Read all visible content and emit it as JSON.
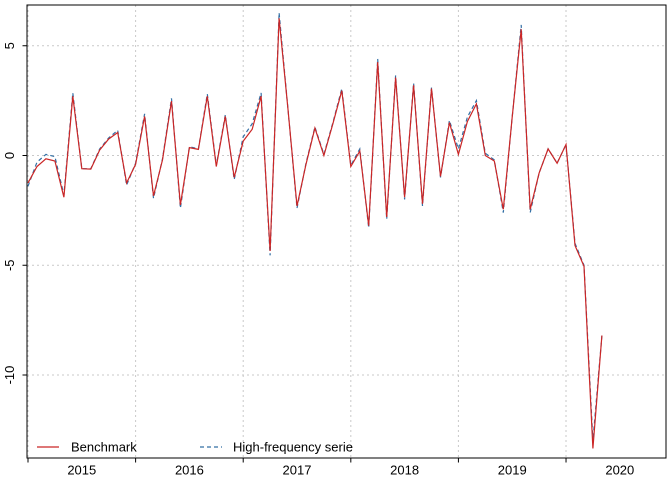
{
  "chart_data": {
    "type": "line",
    "title": "",
    "xlabel": "",
    "ylabel": "",
    "x_unit": "month",
    "x_start": "2015-01",
    "x_end": "2020-05",
    "x_tick_labels": [
      "2015",
      "2016",
      "2017",
      "2018",
      "2019",
      "2020"
    ],
    "y_ticks": [
      5,
      0,
      -5,
      -10
    ],
    "y_tick_labels": [
      "5",
      "0",
      "-5",
      "-10"
    ],
    "ylim": [
      -13.8,
      6.9
    ],
    "grid": "dotted gray at every year tick and y tick",
    "legend_position": "bottom-left inside plot",
    "series": [
      {
        "name": "Benchmark",
        "color": "#cb2626",
        "style": "solid",
        "values": [
          -1.25,
          -0.5,
          -0.15,
          -0.25,
          -1.9,
          2.7,
          -0.6,
          -0.62,
          0.25,
          0.75,
          1.05,
          -1.25,
          -0.4,
          1.78,
          -1.84,
          -0.2,
          2.48,
          -2.25,
          0.36,
          0.28,
          2.7,
          -0.5,
          1.78,
          -1.0,
          0.65,
          1.2,
          2.7,
          -4.35,
          6.25,
          2.1,
          -2.3,
          -0.4,
          1.25,
          0.0,
          1.45,
          2.95,
          -0.5,
          0.2,
          -3.2,
          4.25,
          -2.8,
          3.55,
          -1.9,
          3.2,
          -2.2,
          3.05,
          -0.95,
          1.5,
          0.05,
          1.55,
          2.35,
          0.0,
          -0.25,
          -2.45,
          1.75,
          5.75,
          -2.45,
          -0.8,
          0.3,
          -0.35,
          0.5,
          -4.1,
          -5.05,
          -13.35,
          -8.2
        ]
      },
      {
        "name": "High-frequency serie",
        "color": "#336fa5",
        "style": "dashed",
        "values": [
          -1.4,
          -0.3,
          0.05,
          -0.05,
          -1.8,
          2.85,
          -0.6,
          -0.6,
          0.3,
          0.8,
          1.15,
          -1.35,
          -0.35,
          1.9,
          -1.95,
          -0.15,
          2.6,
          -2.4,
          0.4,
          0.3,
          2.8,
          -0.45,
          1.85,
          -1.1,
          0.85,
          1.45,
          2.85,
          -4.55,
          6.5,
          2.1,
          -2.4,
          -0.35,
          1.3,
          0.05,
          1.5,
          3.05,
          -0.45,
          0.3,
          -3.3,
          4.4,
          -2.9,
          3.65,
          -2.0,
          3.3,
          -2.3,
          3.1,
          -1.0,
          1.6,
          0.3,
          1.75,
          2.5,
          0.1,
          -0.2,
          -2.6,
          1.75,
          5.95,
          -2.6,
          -0.8,
          0.3,
          -0.35,
          0.5,
          -4.0,
          -5.0,
          -13.0,
          -8.2
        ]
      }
    ]
  },
  "colors": {
    "background": "#ffffff",
    "axis_frame": "#000000",
    "grid": "#c9c9c9",
    "text": "#000000",
    "benchmark": "#cb2626",
    "high_frequency": "#336fa5"
  },
  "legend": {
    "items": [
      {
        "label": "Benchmark"
      },
      {
        "label": "High-frequency serie"
      }
    ]
  }
}
